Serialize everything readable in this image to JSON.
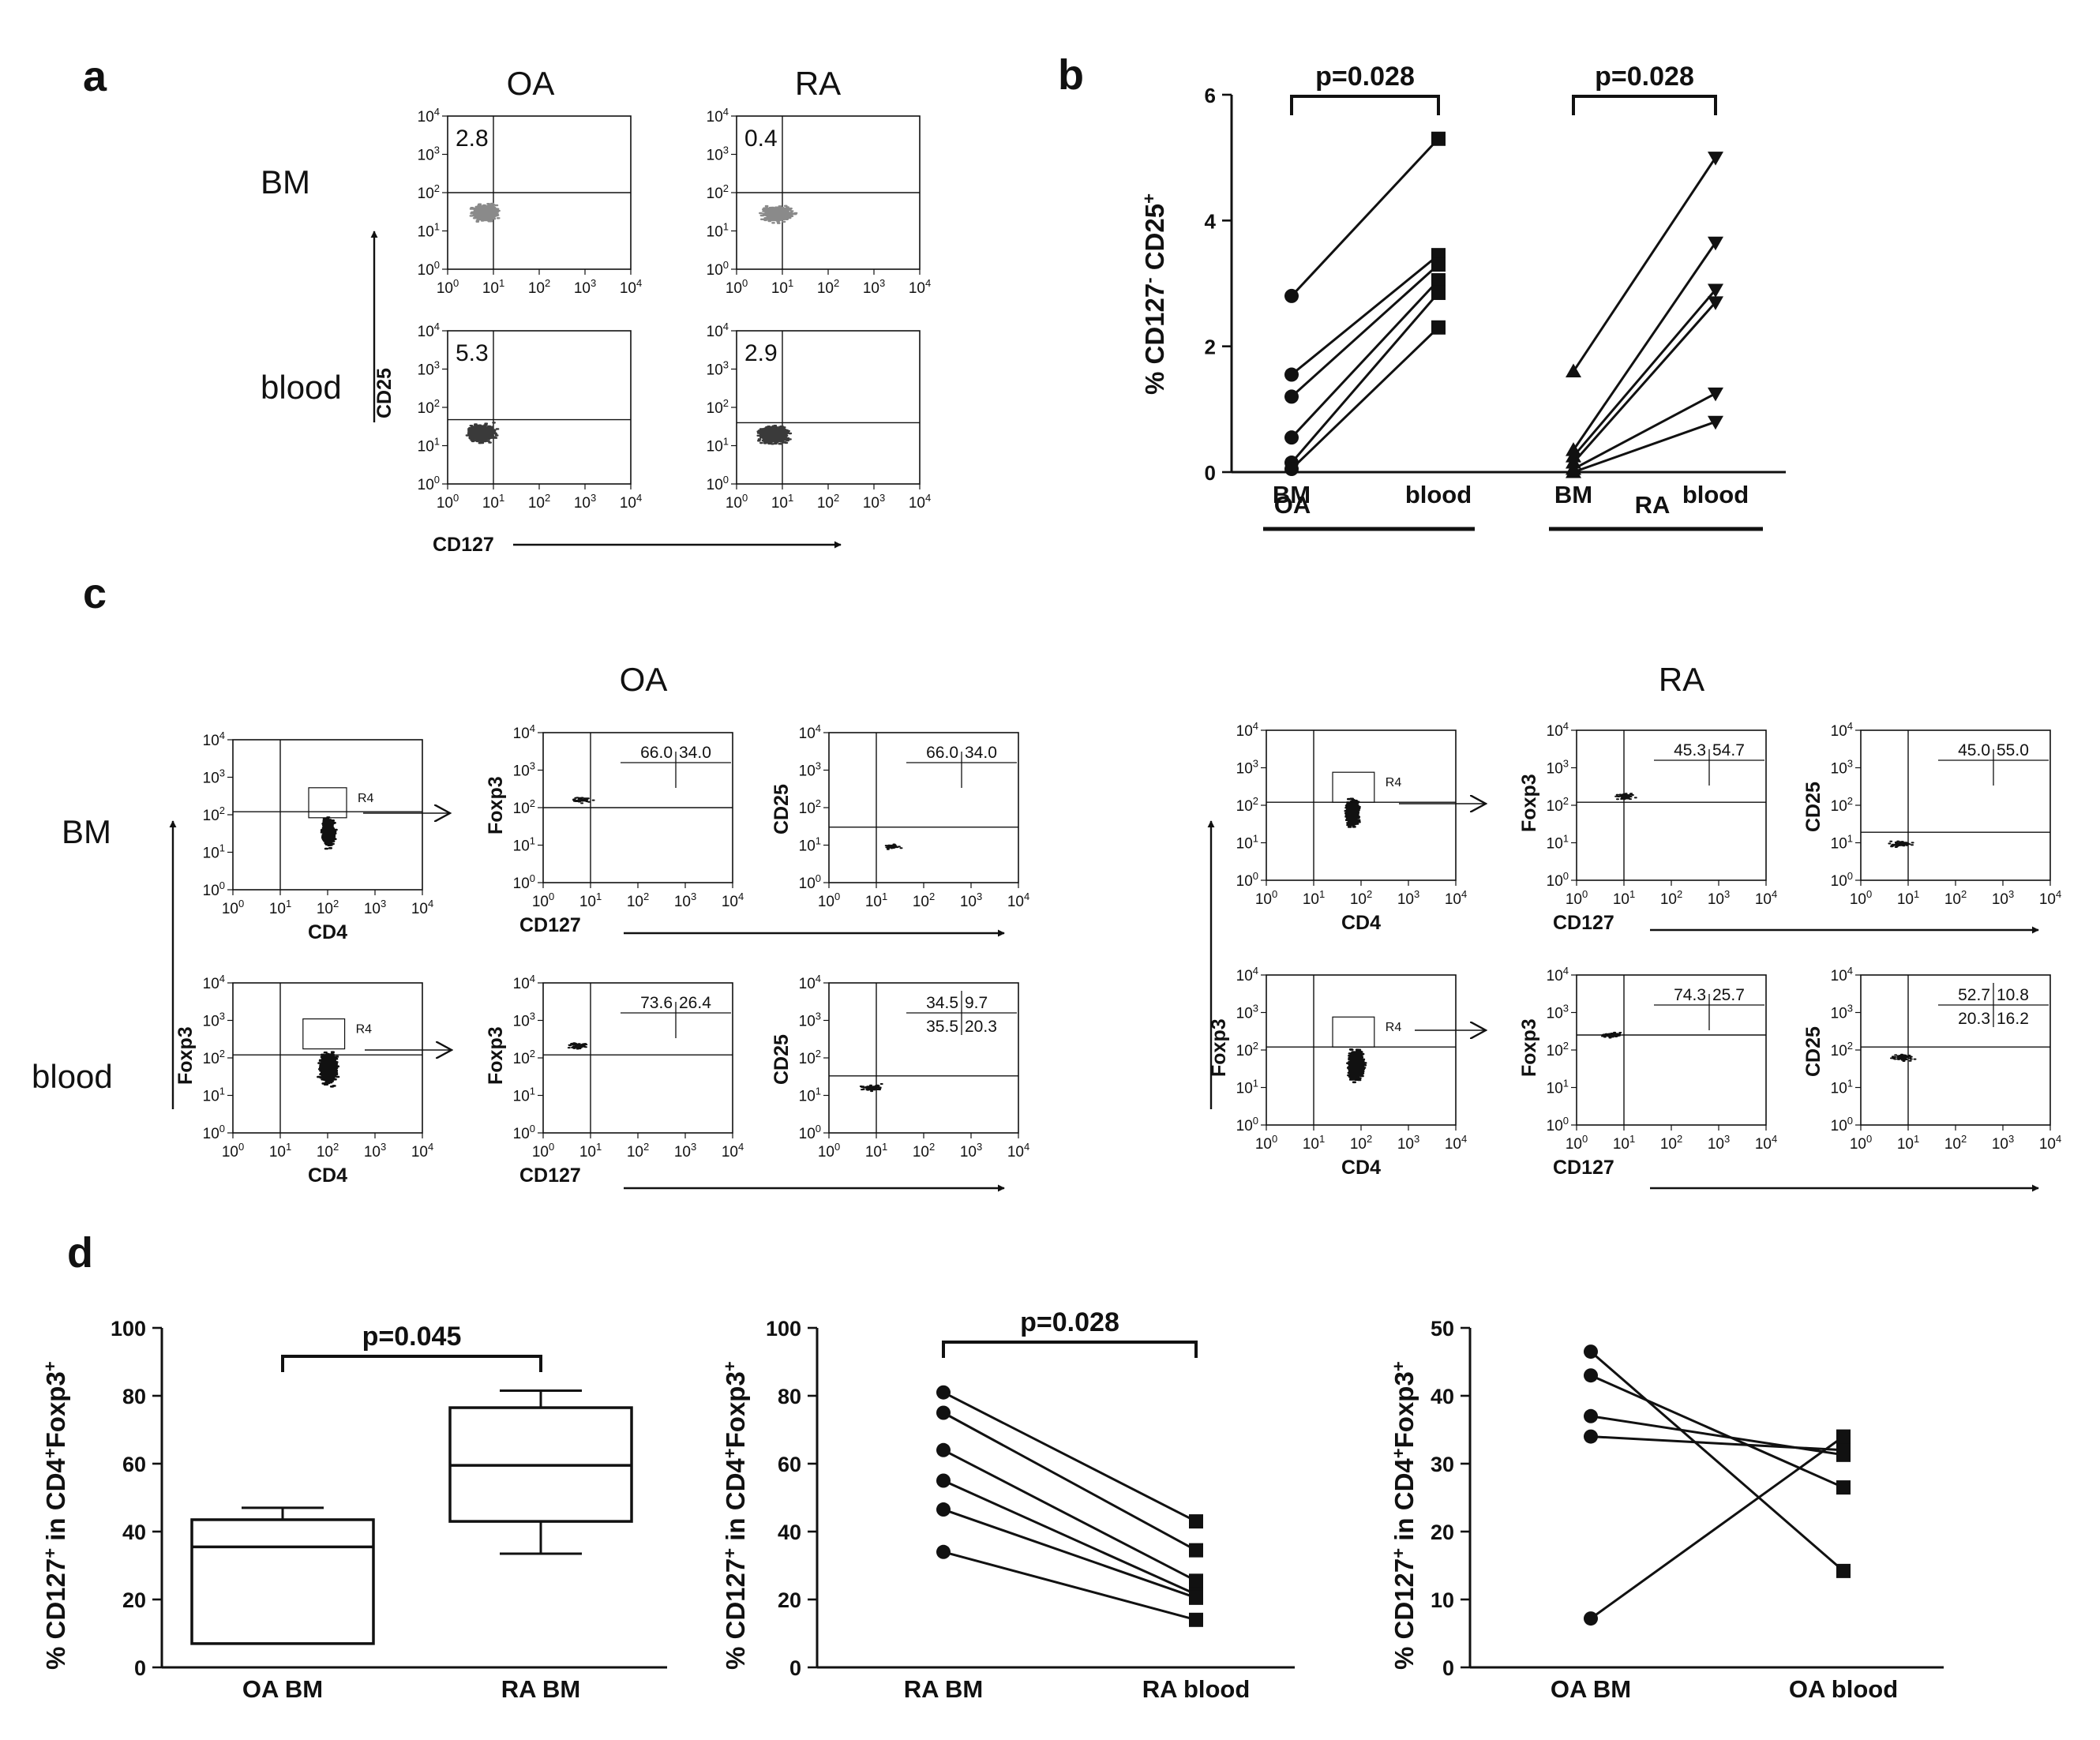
{
  "panels": {
    "a": "a",
    "b": "b",
    "c": "c",
    "d": "d"
  },
  "panel_a": {
    "col_oa": "OA",
    "col_ra": "RA",
    "row_bm": "BM",
    "row_blood": "blood",
    "y_axis": "CD25",
    "x_axis": "CD127",
    "bm_oa_pct": "2.8",
    "bm_ra_pct": "0.4",
    "blood_oa_pct": "5.3",
    "blood_ra_pct": "2.9"
  },
  "panel_c": {
    "title_oa": "OA",
    "title_ra": "RA",
    "row_bm": "BM",
    "row_blood": "blood",
    "x_cd4": "CD4",
    "x_cd127": "CD127",
    "y_foxp3": "Foxp3",
    "y_cd25": "CD25",
    "gate": "R4",
    "oa_bm_foxp3_left": "66.0",
    "oa_bm_foxp3_right": "34.0",
    "oa_bm_cd25_left": "66.0",
    "oa_bm_cd25_right": "34.0",
    "oa_blood_foxp3_left": "73.6",
    "oa_blood_foxp3_right": "26.4",
    "oa_blood_cd25_tl": "34.5",
    "oa_blood_cd25_tr": "9.7",
    "oa_blood_cd25_bl": "35.5",
    "oa_blood_cd25_br": "20.3",
    "ra_bm_foxp3_left": "45.3",
    "ra_bm_foxp3_right": "54.7",
    "ra_bm_cd25_left": "45.0",
    "ra_bm_cd25_right": "55.0",
    "ra_blood_foxp3_left": "74.3",
    "ra_blood_foxp3_right": "25.7",
    "ra_blood_cd25_tl": "52.7",
    "ra_blood_cd25_tr": "10.8",
    "ra_blood_cd25_bl": "20.3",
    "ra_blood_cd25_br": "16.2"
  },
  "colors": {
    "ink": "#111111",
    "grey_dots": "#8a8a8a",
    "dark_dots": "#3a3a3a"
  },
  "chart_data": [
    {
      "id": "b",
      "type": "line",
      "ylabel": "% CD127⁻ CD25⁺",
      "ylabel_main": "% CD127",
      "ylabel_sup1": "-",
      "ylabel_mid": " CD25",
      "ylabel_sup2": "+",
      "ylim": [
        0,
        6
      ],
      "yticks": [
        "0",
        "2",
        "4",
        "6"
      ],
      "categories": [
        "BM",
        "blood",
        "BM",
        "blood"
      ],
      "groups": [
        "OA",
        "RA"
      ],
      "pvalues": [
        "p=0.028",
        "p=0.028"
      ],
      "series": [
        {
          "name": "OA",
          "from": "BM",
          "to": "blood",
          "start_marker": "circle",
          "end_marker": "square",
          "pairs": [
            [
              2.8,
              5.3
            ],
            [
              1.55,
              3.45
            ],
            [
              1.2,
              3.3
            ],
            [
              0.55,
              3.05
            ],
            [
              0.15,
              2.85
            ],
            [
              0.05,
              2.3
            ]
          ]
        },
        {
          "name": "RA",
          "from": "BM",
          "to": "blood",
          "start_marker": "triangle-up",
          "end_marker": "triangle-down",
          "pairs": [
            [
              1.6,
              5.0
            ],
            [
              0.35,
              3.65
            ],
            [
              0.25,
              2.9
            ],
            [
              0.15,
              2.7
            ],
            [
              0.05,
              1.25
            ],
            [
              0.0,
              0.8
            ]
          ]
        }
      ]
    },
    {
      "id": "d1",
      "type": "box",
      "ylabel": "% CD127⁺ in CD4⁺Foxp3⁺",
      "ylabel_main": "% CD127",
      "ylabel_sup1": "+",
      "ylabel_mid": " in CD4",
      "ylabel_sup2": "+",
      "ylabel_end": "Foxp3",
      "ylabel_sup3": "+",
      "ylim": [
        0,
        100
      ],
      "yticks": [
        "0",
        "20",
        "40",
        "60",
        "80",
        "100"
      ],
      "categories": [
        "OA BM",
        "RA BM"
      ],
      "pvalue": "p=0.045",
      "boxes": [
        {
          "name": "OA BM",
          "min": 7,
          "q1": 7,
          "median": 35.5,
          "q3": 43.5,
          "max": 47
        },
        {
          "name": "RA BM",
          "min": 33.5,
          "q1": 43,
          "median": 59.5,
          "q3": 76.5,
          "max": 81.5
        }
      ]
    },
    {
      "id": "d2",
      "type": "line",
      "ylabel": "% CD127⁺ in CD4⁺Foxp3⁺",
      "ylabel_main": "% CD127",
      "ylabel_sup1": "+",
      "ylabel_mid": " in CD4",
      "ylabel_sup2": "+",
      "ylabel_end": "Foxp3",
      "ylabel_sup3": "+",
      "ylim": [
        0,
        100
      ],
      "yticks": [
        "0",
        "20",
        "40",
        "60",
        "80",
        "100"
      ],
      "categories": [
        "RA BM",
        "RA blood"
      ],
      "pvalue": "p=0.028",
      "pairs": [
        [
          81,
          43
        ],
        [
          75,
          34.5
        ],
        [
          64,
          25.5
        ],
        [
          55,
          21.5
        ],
        [
          46.5,
          20.5
        ],
        [
          34,
          14
        ]
      ]
    },
    {
      "id": "d3",
      "type": "line",
      "ylabel": "% CD127⁺ in CD4⁺Foxp3⁺",
      "ylabel_main": "% CD127",
      "ylabel_sup1": "+",
      "ylabel_mid": " in CD4",
      "ylabel_sup2": "+",
      "ylabel_end": "Foxp3",
      "ylabel_sup3": "+",
      "ylim": [
        0,
        50
      ],
      "yticks": [
        "0",
        "10",
        "20",
        "30",
        "40",
        "50"
      ],
      "categories": [
        "OA BM",
        "OA blood"
      ],
      "pairs": [
        [
          46.5,
          14.2
        ],
        [
          43,
          26.5
        ],
        [
          37,
          31.3
        ],
        [
          34,
          32
        ],
        [
          7.2,
          34
        ]
      ]
    }
  ]
}
